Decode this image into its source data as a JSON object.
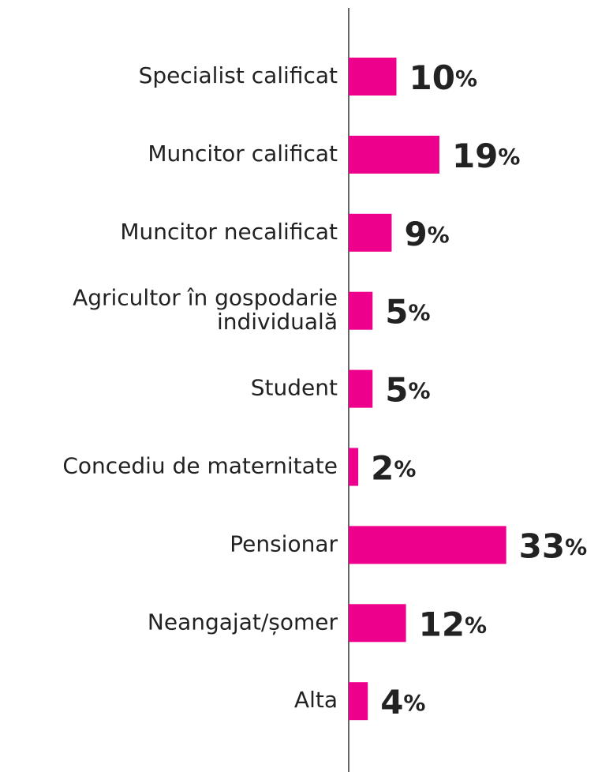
{
  "chart_data": {
    "type": "bar",
    "orientation": "horizontal",
    "color": "#ec008c",
    "categories": [
      "Specialist calificat",
      "Muncitor calificat",
      "Muncitor necalificat",
      "Agricultor în gospodarie individuală",
      "Student",
      "Concediu de maternitate",
      "Pensionar",
      "Neangajat/șomer",
      "Alta"
    ],
    "values": [
      10,
      19,
      9,
      5,
      5,
      2,
      33,
      12,
      4
    ],
    "value_labels": [
      "10%",
      "19%",
      "9%",
      "5%",
      "5%",
      "2%",
      "33%",
      "12%",
      "4%"
    ]
  }
}
